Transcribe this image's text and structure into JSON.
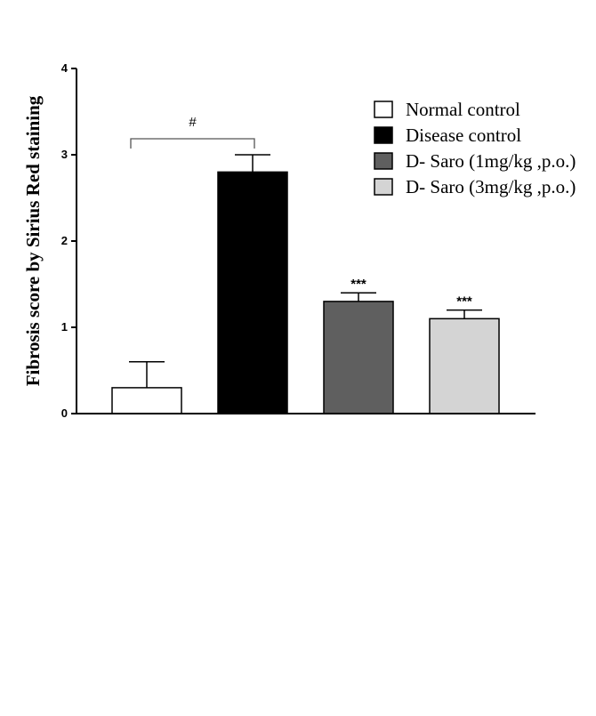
{
  "chart_data": {
    "type": "bar",
    "title": "",
    "xlabel": "",
    "ylabel": "Fibrosis score by Sirius Red staining",
    "ylim": [
      0,
      4
    ],
    "yticks": [
      "0",
      "1",
      "2",
      "3",
      "4"
    ],
    "categories": [
      "Normal control",
      "Disease control",
      "D- Saro (1mg/kg ,p.o.)",
      "D- Saro (3mg/kg ,p.o.)"
    ],
    "values": [
      0.3,
      2.8,
      1.3,
      1.1
    ],
    "errors": [
      0.3,
      0.2,
      0.1,
      0.1
    ],
    "significance": [
      "",
      "",
      "***",
      "***"
    ],
    "bracket": {
      "from": 0,
      "to": 1,
      "label": "#"
    },
    "legend": {
      "position": "top-right",
      "entries": [
        {
          "label": "Normal control",
          "color": "#ffffff"
        },
        {
          "label": "Disease control",
          "color": "#000000"
        },
        {
          "label": "D- Saro (1mg/kg ,p.o.)",
          "color": "#5f5f5f"
        },
        {
          "label": "D- Saro (3mg/kg ,p.o.)",
          "color": "#d4d4d4"
        }
      ]
    },
    "colors": [
      "#ffffff",
      "#000000",
      "#5f5f5f",
      "#d4d4d4"
    ],
    "grid": false
  }
}
